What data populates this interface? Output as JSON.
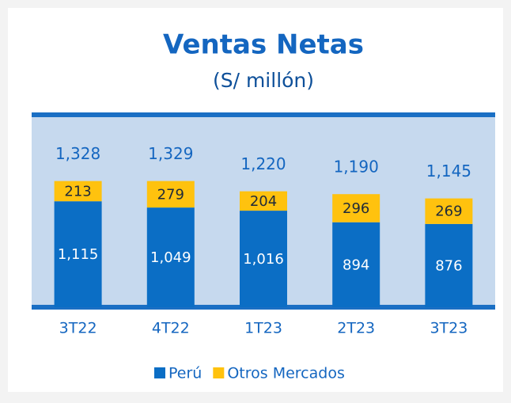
{
  "chart_data": {
    "type": "stacked-bar",
    "title": "Ventas Netas",
    "subtitle": "(S/ millón)",
    "categories": [
      "3T22",
      "4T22",
      "1T23",
      "2T23",
      "3T23"
    ],
    "series": [
      {
        "name": "Perú",
        "color": "#0b6ec5",
        "values": [
          1115,
          1049,
          1016,
          894,
          876
        ],
        "value_labels": [
          "1,115",
          "1,049",
          "1,016",
          "894",
          "876"
        ]
      },
      {
        "name": "Otros Mercados",
        "color": "#ffc20e",
        "values": [
          213,
          279,
          204,
          296,
          269
        ]
      }
    ],
    "totals": [
      1328,
      1329,
      1220,
      1190,
      1145
    ],
    "total_labels": [
      "1,328",
      "1,329",
      "1,220",
      "1,190",
      "1,145"
    ],
    "ylim": [
      0,
      2000
    ],
    "legend": "bottom"
  }
}
